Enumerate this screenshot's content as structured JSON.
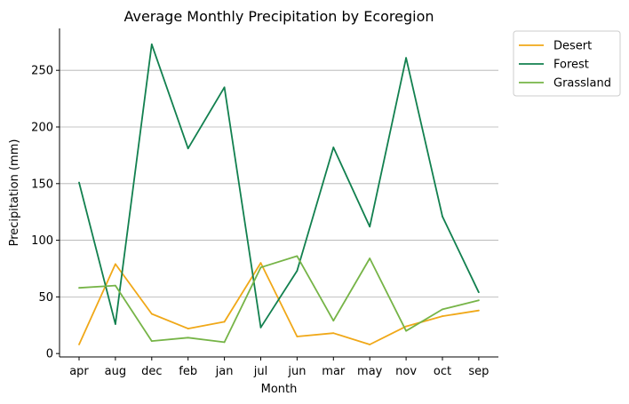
{
  "chart_data": {
    "type": "line",
    "title": "Average Monthly Precipitation by Ecoregion",
    "xlabel": "Month",
    "ylabel": "Precipitation (mm)",
    "categories": [
      "apr",
      "aug",
      "dec",
      "feb",
      "jan",
      "jul",
      "jun",
      "mar",
      "may",
      "nov",
      "oct",
      "sep"
    ],
    "ylim": [
      -3,
      287
    ],
    "yticks": [
      0,
      50,
      100,
      150,
      200,
      250
    ],
    "grid": "horizontal",
    "legend_position": "outside top-right",
    "series": [
      {
        "name": "Desert",
        "color": "#f0a818",
        "values": [
          8,
          79,
          35,
          22,
          28,
          80,
          15,
          18,
          8,
          24,
          33,
          38
        ]
      },
      {
        "name": "Forest",
        "color": "#12804f",
        "values": [
          151,
          26,
          273,
          181,
          235,
          23,
          73,
          182,
          112,
          261,
          121,
          54
        ]
      },
      {
        "name": "Grassland",
        "color": "#76b447",
        "values": [
          58,
          60,
          11,
          14,
          10,
          76,
          86,
          29,
          84,
          20,
          39,
          47
        ]
      }
    ]
  }
}
